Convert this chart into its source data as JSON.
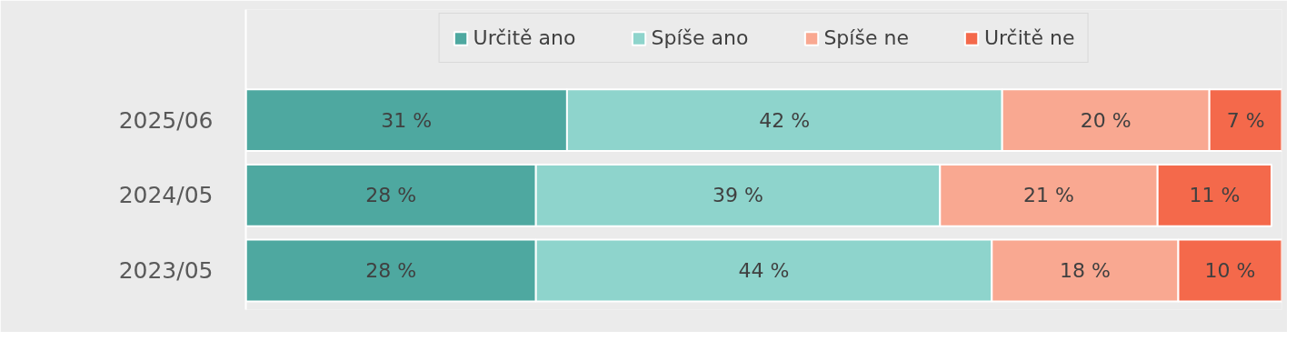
{
  "chart_data": {
    "type": "bar",
    "orientation": "horizontal",
    "stacked": true,
    "categories": [
      "2025/06",
      "2024/05",
      "2023/05"
    ],
    "series": [
      {
        "name": "Určitě ano",
        "color": "#4ea8a0",
        "values": [
          31,
          28,
          28
        ],
        "value_labels": [
          "31 %",
          "28 %",
          "28 %"
        ]
      },
      {
        "name": "Spíše ano",
        "color": "#8ed4cc",
        "values": [
          42,
          39,
          44
        ],
        "value_labels": [
          "42 %",
          "39 %",
          "44 %"
        ]
      },
      {
        "name": "Spíše ne",
        "color": "#f9a891",
        "values": [
          20,
          21,
          18
        ],
        "value_labels": [
          "20 %",
          "21 %",
          "18 %"
        ]
      },
      {
        "name": "Určitě ne",
        "color": "#f4694b",
        "values": [
          7,
          11,
          10
        ],
        "value_labels": [
          "7 %",
          "11 %",
          "10 %"
        ]
      }
    ],
    "xlim": [
      0,
      100
    ],
    "tick_labels": "y",
    "grid": false,
    "legend": "top"
  }
}
